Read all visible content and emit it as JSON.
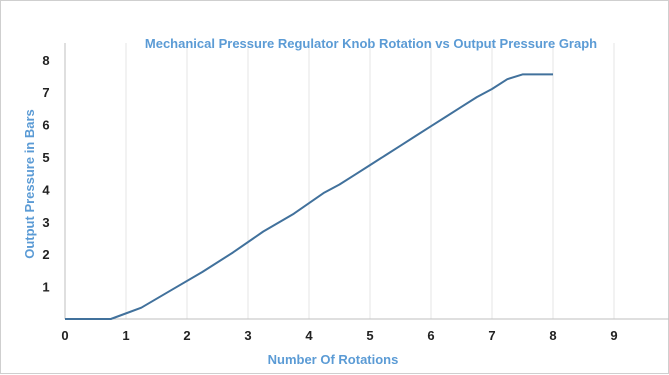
{
  "chart_data": {
    "type": "line",
    "title": "Mechanical Pressure Regulator Knob Rotation vs Output Pressure Graph",
    "xlabel": "Number Of Rotations",
    "ylabel": "Output Pressure in Bars",
    "xlim": [
      0,
      10
    ],
    "ylim": [
      0,
      8.5
    ],
    "x_ticks": [
      0,
      1,
      2,
      3,
      4,
      5,
      6,
      7,
      8,
      9
    ],
    "y_ticks": [
      1,
      2,
      3,
      4,
      5,
      6,
      7,
      8
    ],
    "grid": {
      "vertical": true,
      "horizontal": false
    },
    "legend": "none",
    "series": [
      {
        "color": "#41719c",
        "x": [
          0,
          0.75,
          1.25,
          1.75,
          2.25,
          2.75,
          3.25,
          3.75,
          4.25,
          4.5,
          4.75,
          5.0,
          5.25,
          5.5,
          5.75,
          6.0,
          6.25,
          6.5,
          6.75,
          7.0,
          7.25,
          7.5,
          8.0
        ],
        "y": [
          0,
          0,
          0.35,
          0.9,
          1.45,
          2.05,
          2.7,
          3.25,
          3.9,
          4.15,
          4.45,
          4.75,
          5.05,
          5.35,
          5.65,
          5.95,
          6.25,
          6.55,
          6.85,
          7.1,
          7.4,
          7.55,
          7.55
        ]
      }
    ]
  }
}
